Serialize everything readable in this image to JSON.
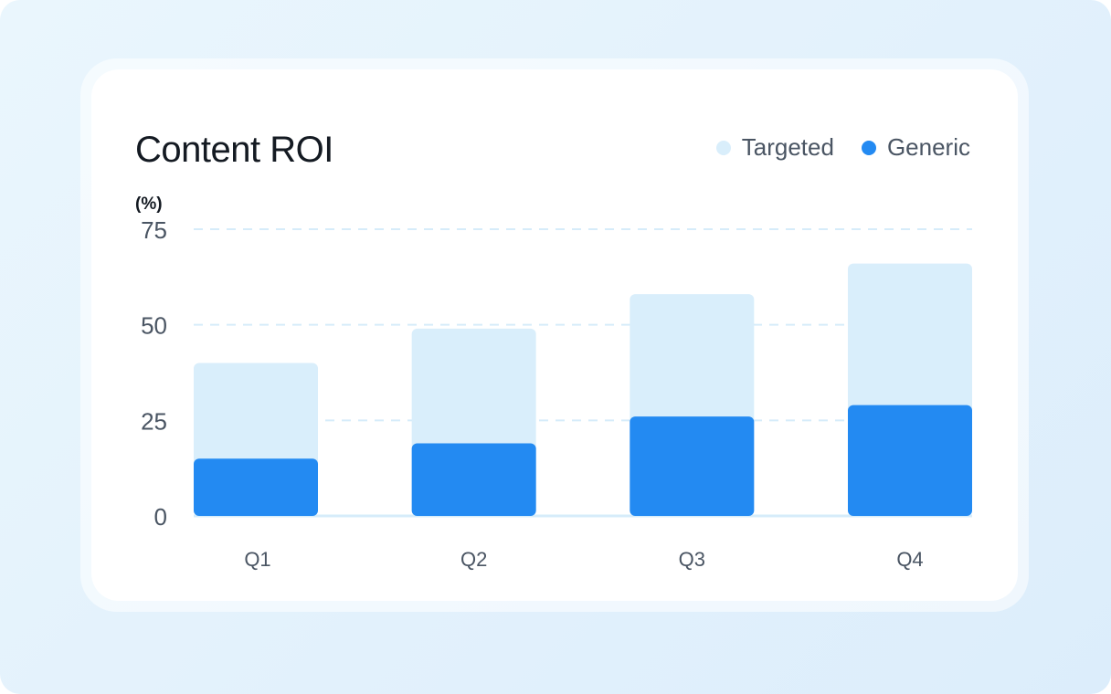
{
  "chart_data": {
    "type": "bar",
    "stacked": true,
    "title": "Content ROI",
    "ylabel": "(%)",
    "xlabel": "",
    "categories": [
      "Q1",
      "Q2",
      "Q3",
      "Q4"
    ],
    "series": [
      {
        "name": "Generic",
        "values": [
          15,
          19,
          26,
          29
        ],
        "color": "#238af2"
      },
      {
        "name": "Targeted",
        "values": [
          25,
          30,
          32,
          37
        ],
        "color": "#d9eefb"
      }
    ],
    "ylim": [
      0,
      75
    ],
    "yticks": [
      "0",
      "25",
      "50",
      "75"
    ],
    "grid": true,
    "legend_position": "top-right"
  }
}
